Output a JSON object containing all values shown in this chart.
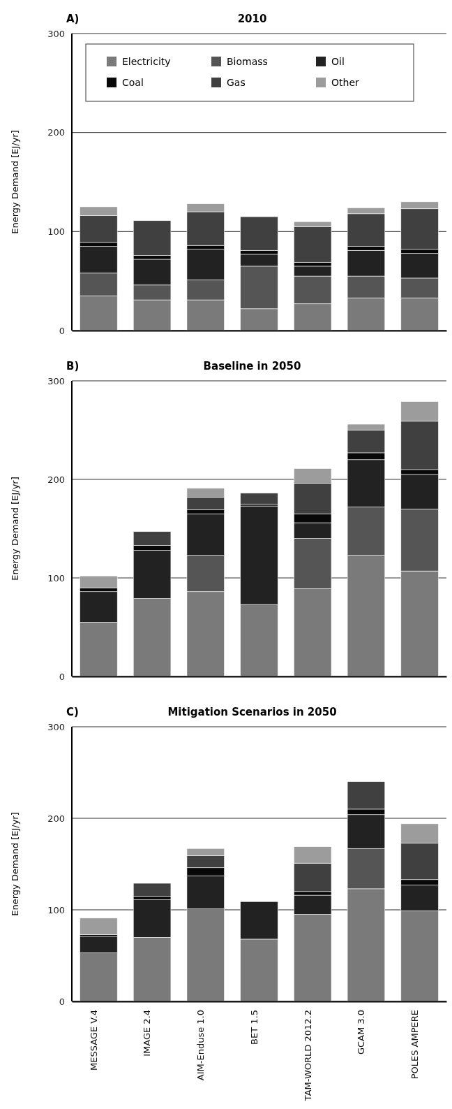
{
  "chart_data": [
    {
      "type": "bar",
      "stacked": true,
      "title": "2010",
      "annotations": [
        "A)"
      ],
      "ylabel": "Energy Demand [EJ/yr]",
      "categories": [
        null,
        null,
        null,
        null,
        null,
        null,
        null
      ],
      "ylim": [
        0,
        300
      ],
      "yticks": [
        0,
        100,
        200,
        300
      ],
      "grid": "y",
      "legend": "top left",
      "tick_labels": "y",
      "series": [
        {
          "name": "Electricity",
          "color": "#7a7a7a",
          "values": [
            35,
            31,
            31,
            22,
            27,
            33,
            33
          ]
        },
        {
          "name": "Biomass",
          "color": "#555555",
          "values": [
            23,
            15,
            20,
            43,
            28,
            22,
            20
          ]
        },
        {
          "name": "Oil",
          "color": "#222222",
          "values": [
            27,
            26,
            31,
            12,
            10,
            26,
            25
          ]
        },
        {
          "name": "Coal",
          "color": "#080808",
          "values": [
            4,
            4,
            4,
            4,
            4,
            4,
            4
          ]
        },
        {
          "name": "Gas",
          "color": "#404040",
          "values": [
            27,
            35,
            34,
            34,
            36,
            33,
            41
          ]
        },
        {
          "name": "Other",
          "color": "#9c9c9c",
          "values": [
            9,
            0,
            8,
            0,
            5,
            6,
            7
          ]
        }
      ]
    },
    {
      "type": "bar",
      "stacked": true,
      "title": "Baseline in 2050",
      "annotations": [
        "B)"
      ],
      "ylabel": "Energy Demand [EJ/yr]",
      "categories": [
        null,
        null,
        null,
        null,
        null,
        null,
        null
      ],
      "ylim": [
        0,
        300
      ],
      "yticks": [
        0,
        100,
        200,
        300
      ],
      "grid": "y",
      "tick_labels": "y",
      "series": [
        {
          "color": "#7a7a7a",
          "values": [
            55,
            79,
            86,
            73,
            89,
            123,
            107
          ]
        },
        {
          "color": "#555555",
          "values": [
            0,
            0,
            37,
            0,
            51,
            49,
            63
          ]
        },
        {
          "color": "#222222",
          "values": [
            31,
            49,
            42,
            100,
            16,
            48,
            35
          ]
        },
        {
          "color": "#080808",
          "values": [
            4,
            5,
            4,
            2,
            9,
            7,
            5
          ]
        },
        {
          "color": "#404040",
          "values": [
            0,
            14,
            13,
            11,
            31,
            23,
            49
          ]
        },
        {
          "color": "#9c9c9c",
          "values": [
            12,
            0,
            9,
            0,
            15,
            6,
            20
          ]
        }
      ]
    },
    {
      "type": "bar",
      "stacked": true,
      "title": "Mitigation Scenarios in 2050",
      "annotations": [
        "C)"
      ],
      "ylabel": "Energy Demand [EJ/yr]",
      "categories": [
        "MESSAGE V.4",
        "IMAGE 2.4",
        "AIM-Enduse 1.0",
        "BET 1.5",
        "TAM-WORLD 2012.2",
        "GCAM 3.0",
        "POLES AMPERE"
      ],
      "ylim": [
        0,
        300
      ],
      "yticks": [
        0,
        100,
        200,
        300
      ],
      "grid": "y",
      "series": [
        {
          "color": "#7a7a7a",
          "values": [
            53,
            70,
            101,
            68,
            95,
            123,
            99
          ]
        },
        {
          "color": "#555555",
          "values": [
            0,
            0,
            0,
            0,
            0,
            44,
            0
          ]
        },
        {
          "color": "#222222",
          "values": [
            18,
            41,
            36,
            41,
            21,
            37,
            28
          ]
        },
        {
          "color": "#080808",
          "values": [
            2,
            4,
            9,
            0,
            4,
            6,
            6
          ]
        },
        {
          "color": "#404040",
          "values": [
            0,
            14,
            13,
            0,
            31,
            30,
            40
          ]
        },
        {
          "color": "#9c9c9c",
          "values": [
            18,
            0,
            8,
            0,
            18,
            0,
            21
          ]
        }
      ]
    }
  ]
}
